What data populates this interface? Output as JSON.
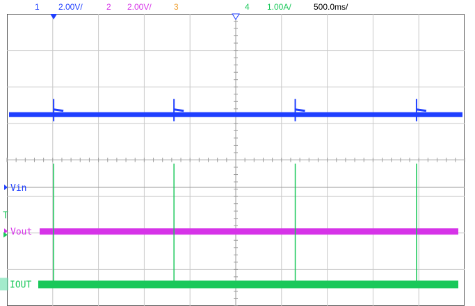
{
  "header": {
    "ch1": {
      "num": "1",
      "scale": "2.00V/",
      "color": "#1f3fff"
    },
    "ch2": {
      "num": "2",
      "scale": "2.00V/",
      "color": "#d633e8"
    },
    "ch3": {
      "num": "3",
      "color": "#f0a030"
    },
    "ch4": {
      "num": "4",
      "scale": "1.00A/",
      "color": "#1ac85a"
    },
    "timebase": "500.0ms/"
  },
  "chart_data": {
    "type": "line",
    "xlabel": "",
    "ylabel": "",
    "grid": true,
    "divisions": {
      "x": 10,
      "y": 8
    },
    "series": [
      {
        "name": "1",
        "color": "#1f3fff",
        "level_div": 5.25,
        "glitch_times_div": [
          1.02,
          3.65,
          6.3,
          8.95
        ]
      },
      {
        "name": "Vin",
        "color": "#1f3fff",
        "level_div": 3.25
      },
      {
        "name": "Vout",
        "color": "#d633e8",
        "level_div": 2.05
      },
      {
        "name": "IOUT",
        "color": "#1ac85a",
        "level_div": 0.6,
        "spike_times_div": [
          1.02,
          3.65,
          6.3,
          8.95
        ],
        "spike_top_div": 3.9
      }
    ],
    "labels": {
      "vin": "Vin",
      "vout": "Vout",
      "iout": "IOUT",
      "trigger": "T"
    }
  }
}
